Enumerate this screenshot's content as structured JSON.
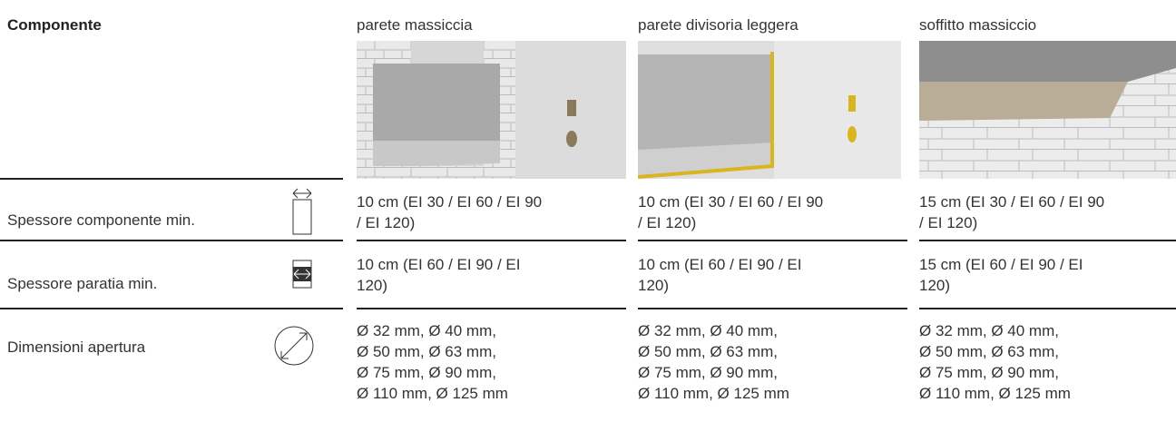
{
  "header": {
    "title": "Componente"
  },
  "columns": [
    "parete massiccia",
    "parete divisoria leggera",
    "soffitto massiccio"
  ],
  "rows": [
    {
      "label": "Spessore componente min.",
      "cells": [
        [
          "10 cm (EI 30 / EI 60 / EI 90",
          "/ EI 120)"
        ],
        [
          "10 cm (EI 30 / EI 60 / EI 90",
          "/ EI 120)"
        ],
        [
          "15 cm (EI 30 / EI 60 / EI 90",
          "/ EI 120)"
        ]
      ]
    },
    {
      "label": "Spessore paratia min.",
      "cells": [
        [
          "10 cm (EI 60 / EI 90 / EI",
          "120)"
        ],
        [
          "10 cm (EI 60 / EI 90 / EI",
          "120)"
        ],
        [
          "15 cm (EI 60 / EI 90 / EI",
          "120)"
        ]
      ]
    },
    {
      "label": "Dimensioni apertura",
      "cells": [
        [
          "Ø 32 mm, Ø 40 mm,",
          "Ø 50 mm, Ø 63 mm,",
          "Ø 75 mm, Ø 90 mm,",
          "Ø 110 mm, Ø 125 mm"
        ],
        [
          "Ø 32 mm, Ø 40 mm,",
          "Ø 50 mm, Ø 63 mm,",
          "Ø 75 mm, Ø 90 mm,",
          "Ø 110 mm, Ø 125 mm"
        ],
        [
          "Ø 32 mm, Ø 40 mm,",
          "Ø 50 mm, Ø 63 mm,",
          "Ø 75 mm, Ø 90 mm,",
          "Ø 110 mm, Ø 125 mm"
        ]
      ]
    }
  ]
}
